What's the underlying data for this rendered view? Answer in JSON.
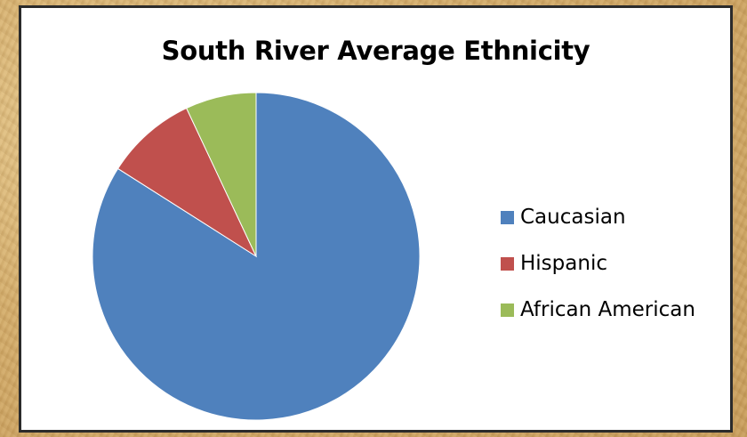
{
  "chart_data": {
    "type": "pie",
    "title": "South River Average Ethnicity",
    "categories": [
      "Caucasian",
      "Hispanic",
      "African American"
    ],
    "values": [
      84,
      9,
      7
    ],
    "colors": [
      "#4F81BD",
      "#C0504D",
      "#9BBB59"
    ],
    "start_angle_deg": 0,
    "direction": "clockwise",
    "legend_position": "right"
  }
}
